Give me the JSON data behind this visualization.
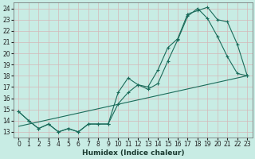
{
  "xlabel": "Humidex (Indice chaleur)",
  "bg_color": "#c8ece4",
  "plot_bg_color": "#c8ece4",
  "grid_color": "#aad4ca",
  "line_color": "#1a6b5a",
  "xlim": [
    -0.5,
    23.5
  ],
  "ylim": [
    12.5,
    24.5
  ],
  "yticks": [
    13,
    14,
    15,
    16,
    17,
    18,
    19,
    20,
    21,
    22,
    23,
    24
  ],
  "xticks": [
    0,
    1,
    2,
    3,
    4,
    5,
    6,
    7,
    8,
    9,
    10,
    11,
    12,
    13,
    14,
    15,
    16,
    17,
    18,
    19,
    20,
    21,
    22,
    23
  ],
  "line1_x": [
    0,
    1,
    2,
    3,
    4,
    5,
    6,
    7,
    8,
    9,
    10,
    11,
    12,
    13,
    14,
    15,
    16,
    17,
    18,
    19,
    20,
    21,
    22,
    23
  ],
  "line1_y": [
    14.8,
    14.0,
    13.3,
    13.7,
    13.0,
    13.3,
    13.0,
    13.7,
    13.7,
    13.7,
    16.5,
    17.8,
    17.2,
    16.8,
    17.3,
    19.3,
    21.2,
    23.3,
    24.0,
    23.1,
    21.5,
    19.7,
    18.2,
    18.0
  ],
  "line2_x": [
    0,
    1,
    2,
    3,
    4,
    5,
    6,
    7,
    8,
    9,
    10,
    11,
    12,
    13,
    14,
    15,
    16,
    17,
    18,
    19,
    20,
    21,
    22,
    23
  ],
  "line2_y": [
    14.8,
    14.0,
    13.3,
    13.7,
    13.0,
    13.3,
    13.0,
    13.7,
    13.7,
    13.7,
    15.5,
    16.5,
    17.2,
    17.0,
    18.5,
    20.5,
    21.3,
    23.5,
    23.8,
    24.1,
    23.0,
    22.8,
    20.8,
    18.0
  ],
  "line3_x": [
    0,
    23
  ],
  "line3_y": [
    13.5,
    18.0
  ],
  "xlabel_fontsize": 6.5,
  "tick_fontsize": 5.5
}
